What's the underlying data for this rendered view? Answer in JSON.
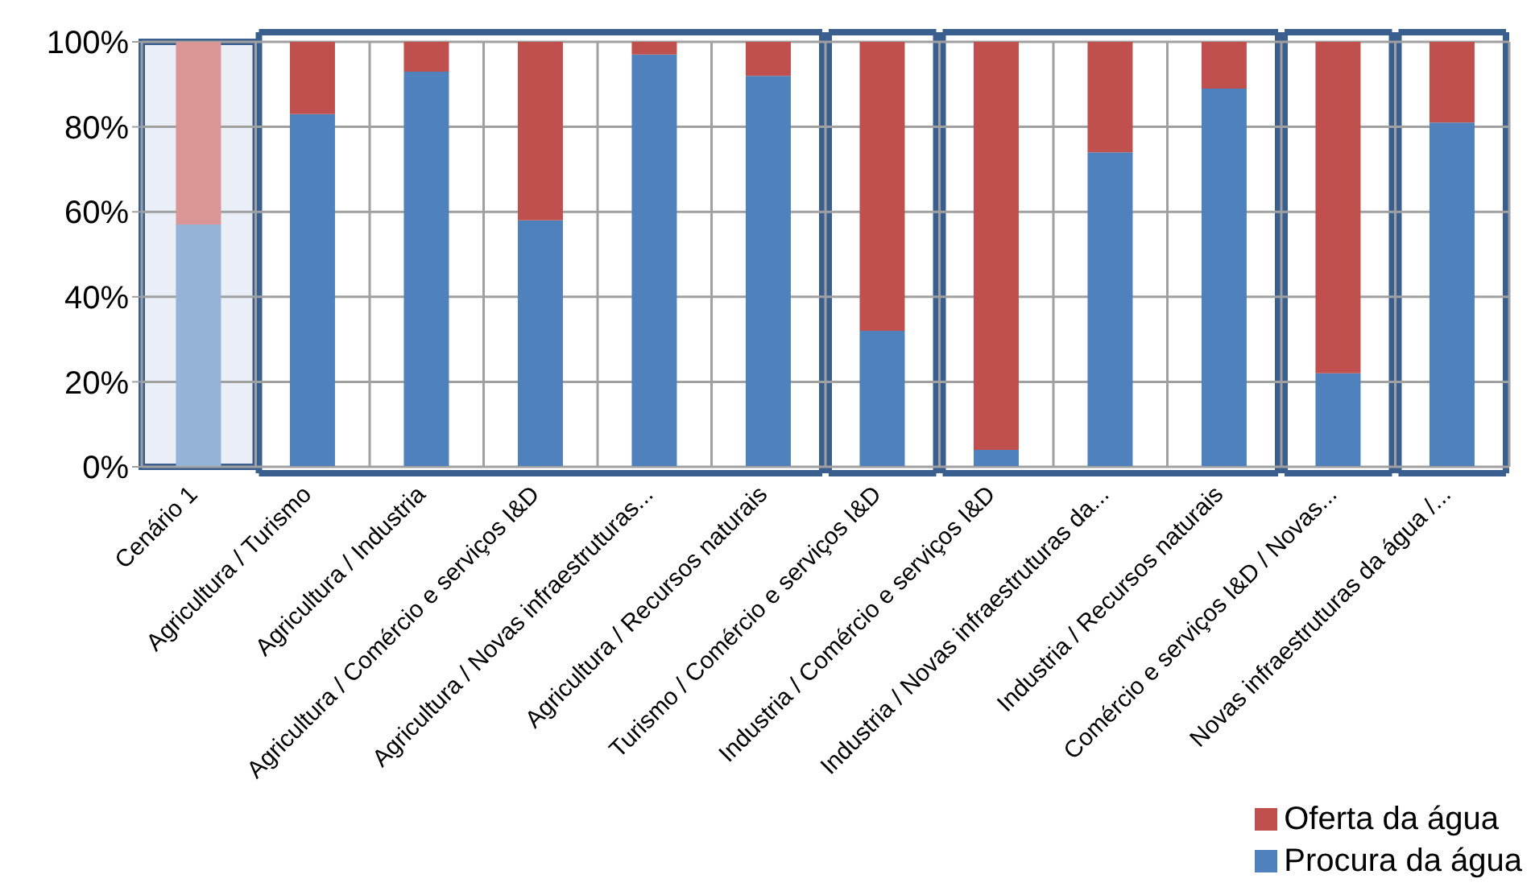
{
  "chart_data": {
    "type": "bar",
    "stacked": true,
    "categories": [
      "Cenário 1",
      "Agricultura / Turismo",
      "Agricultura / Industria",
      "Agricultura / Comércio e serviços I&D",
      "Agricultura / Novas infraestruturas...",
      "Agricultura / Recursos naturais",
      "Turismo / Comércio e serviços I&D",
      "Industria / Comércio e serviços I&D",
      "Industria / Novas infraestruturas da...",
      "Industria / Recursos naturais",
      "Comércio e serviços I&D / Novas...",
      "Novas infraestruturas da água /..."
    ],
    "series": [
      {
        "name": "Procura da água",
        "color": "#4f81bd",
        "colors": [
          "#95b3d7",
          "#4f81bd",
          "#4f81bd",
          "#4f81bd",
          "#4f81bd",
          "#4f81bd",
          "#4f81bd",
          "#4f81bd",
          "#4f81bd",
          "#4f81bd",
          "#4f81bd",
          "#4f81bd"
        ],
        "values": [
          57,
          83,
          93,
          58,
          97,
          92,
          32,
          4,
          74,
          89,
          22,
          81
        ]
      },
      {
        "name": "Oferta da água",
        "color": "#c0504d",
        "colors": [
          "#d99694",
          "#c0504d",
          "#c0504d",
          "#c0504d",
          "#c0504d",
          "#c0504d",
          "#c0504d",
          "#c0504d",
          "#c0504d",
          "#c0504d",
          "#c0504d",
          "#c0504d"
        ],
        "values": [
          43,
          17,
          7,
          42,
          3,
          8,
          68,
          96,
          26,
          11,
          78,
          19
        ]
      }
    ],
    "ylim": [
      0,
      100
    ],
    "yticks": [
      {
        "value": 0,
        "label": "0%"
      },
      {
        "value": 20,
        "label": "20%"
      },
      {
        "value": 40,
        "label": "40%"
      },
      {
        "value": 60,
        "label": "60%"
      },
      {
        "value": 80,
        "label": "80%"
      },
      {
        "value": 100,
        "label": "100%"
      }
    ],
    "bands": [
      {
        "axis": "x",
        "from": "Cenário 1",
        "to": "Cenário 1",
        "color": "#e9eef7"
      }
    ],
    "grid": true,
    "legend": "bottom right"
  }
}
